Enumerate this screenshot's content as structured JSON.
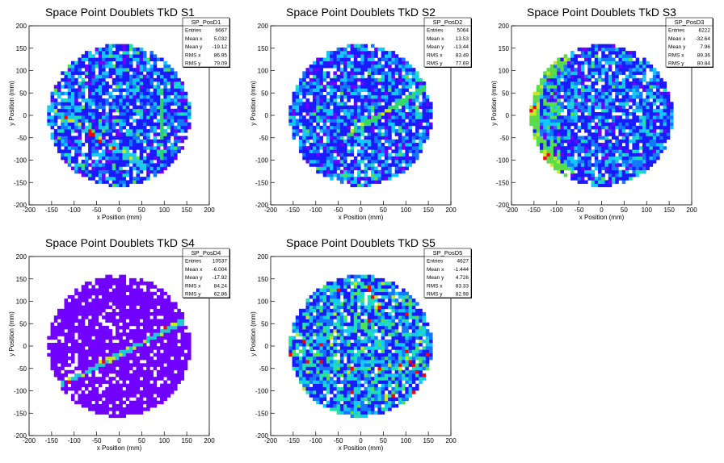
{
  "chart_data": [
    {
      "type": "heatmap",
      "title": "Space Point Doublets TkD S1",
      "xlabel": "x Position (mm)",
      "ylabel": "y Position (mm)",
      "xlim": [
        -200,
        200
      ],
      "ylim": [
        -200,
        200
      ],
      "x_ticks": [
        -200,
        -150,
        -100,
        -50,
        0,
        50,
        100,
        150,
        200
      ],
      "y_ticks": [
        -200,
        -150,
        -100,
        -50,
        0,
        50,
        100,
        150,
        200
      ],
      "stats": {
        "name": "SP_PosD1",
        "rows": [
          {
            "label": "Entries",
            "value": "6667"
          },
          {
            "label": "Mean x",
            "value": "5.032"
          },
          {
            "label": "Mean y",
            "value": "-19.12"
          },
          {
            "label": "RMS x",
            "value": "86.95"
          },
          {
            "label": "RMS y",
            "value": "79.09"
          }
        ]
      },
      "pattern": "bluemix",
      "features": [
        {
          "kind": "vline",
          "x": 95,
          "y0": -110,
          "y1": 60,
          "color": "#2fd06b"
        },
        {
          "kind": "line",
          "x0": -160,
          "y0": 20,
          "x1": 60,
          "y1": -115,
          "color": "#22c8e8"
        }
      ]
    },
    {
      "type": "heatmap",
      "title": "Space Point Doublets TkD S2",
      "xlabel": "x Position (mm)",
      "ylabel": "y Position (mm)",
      "xlim": [
        -200,
        200
      ],
      "ylim": [
        -200,
        200
      ],
      "x_ticks": [
        -200,
        -150,
        -100,
        -50,
        0,
        50,
        100,
        150,
        200
      ],
      "y_ticks": [
        -200,
        -150,
        -100,
        -50,
        0,
        50,
        100,
        150,
        200
      ],
      "stats": {
        "name": "SP_PosD2",
        "rows": [
          {
            "label": "Entries",
            "value": "5064"
          },
          {
            "label": "Mean x",
            "value": "13.53"
          },
          {
            "label": "Mean y",
            "value": "-13.44"
          },
          {
            "label": "RMS x",
            "value": "83.49"
          },
          {
            "label": "RMS y",
            "value": "77.69"
          }
        ]
      },
      "pattern": "bluemix",
      "features": [
        {
          "kind": "line",
          "x0": -40,
          "y0": -50,
          "x1": 140,
          "y1": 60,
          "color": "#35d66a"
        }
      ]
    },
    {
      "type": "heatmap",
      "title": "Space Point Doublets TkD S3",
      "xlabel": "x Position (mm)",
      "ylabel": "y Position (mm)",
      "xlim": [
        -200,
        200
      ],
      "ylim": [
        -200,
        200
      ],
      "x_ticks": [
        -200,
        -150,
        -100,
        -50,
        0,
        50,
        100,
        150,
        200
      ],
      "y_ticks": [
        -200,
        -150,
        -100,
        -50,
        0,
        50,
        100,
        150,
        200
      ],
      "stats": {
        "name": "SP_PosD3",
        "rows": [
          {
            "label": "Entries",
            "value": "6222"
          },
          {
            "label": "Mean x",
            "value": "-32.64"
          },
          {
            "label": "Mean y",
            "value": "7.96"
          },
          {
            "label": "RMS x",
            "value": "89.36"
          },
          {
            "label": "RMS y",
            "value": "80.84"
          }
        ]
      },
      "pattern": "bluemix-left",
      "features": [
        {
          "kind": "arc",
          "cx": 0,
          "cy": 0,
          "r": 150,
          "a0": 120,
          "a1": 240,
          "color": "#5fd84a"
        }
      ]
    },
    {
      "type": "heatmap",
      "title": "Space Point Doublets TkD S4",
      "xlabel": "x Position (mm)",
      "ylabel": "y Position (mm)",
      "xlim": [
        -200,
        200
      ],
      "ylim": [
        -200,
        200
      ],
      "x_ticks": [
        -200,
        -150,
        -100,
        -50,
        0,
        50,
        100,
        150,
        200
      ],
      "y_ticks": [
        -200,
        -150,
        -100,
        -50,
        0,
        50,
        100,
        150,
        200
      ],
      "stats": {
        "name": "SP_PosD4",
        "rows": [
          {
            "label": "Entries",
            "value": "10537"
          },
          {
            "label": "Mean x",
            "value": "-6.004"
          },
          {
            "label": "Mean y",
            "value": "-17.92"
          },
          {
            "label": "RMS x",
            "value": "84.24"
          },
          {
            "label": "RMS y",
            "value": "62.86"
          }
        ]
      },
      "pattern": "purple",
      "features": [
        {
          "kind": "line",
          "x0": -135,
          "y0": -90,
          "x1": 150,
          "y1": 60,
          "color": "#20c8d8"
        }
      ]
    },
    {
      "type": "heatmap",
      "title": "Space Point Doublets TkD S5",
      "xlabel": "x Position (mm)",
      "ylabel": "y Position (mm)",
      "xlim": [
        -200,
        200
      ],
      "ylim": [
        -200,
        200
      ],
      "x_ticks": [
        -200,
        -150,
        -100,
        -50,
        0,
        50,
        100,
        150,
        200
      ],
      "y_ticks": [
        -200,
        -150,
        -100,
        -50,
        0,
        50,
        100,
        150,
        200
      ],
      "stats": {
        "name": "SP_PosD5",
        "rows": [
          {
            "label": "Entries",
            "value": "4627"
          },
          {
            "label": "Mean x",
            "value": "-1.444"
          },
          {
            "label": "Mean y",
            "value": "4.726"
          },
          {
            "label": "RMS x",
            "value": "83.33"
          },
          {
            "label": "RMS y",
            "value": "82.98"
          }
        ]
      },
      "pattern": "mixed",
      "features": []
    }
  ],
  "colors": {
    "palette": [
      "#7000ff",
      "#1a1aff",
      "#1478ff",
      "#14c8ff",
      "#20e0b0",
      "#50e050",
      "#c8e628",
      "#ff6a00",
      "#ff0000"
    ]
  }
}
